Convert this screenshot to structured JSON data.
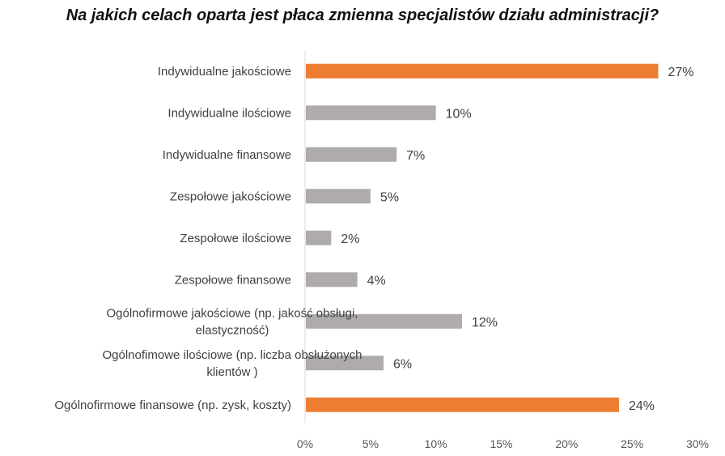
{
  "chart_data": {
    "type": "bar",
    "orientation": "horizontal",
    "title": "Na jakich celach oparta jest płaca zmienna specjalistów działu administracji?",
    "categories": [
      [
        "Indywidualne jakościowe"
      ],
      [
        "Indywidualne ilościowe"
      ],
      [
        "Indywidualne finansowe"
      ],
      [
        "Zespołowe jakościowe"
      ],
      [
        "Zespołowe ilościowe"
      ],
      [
        "Zespołowe finansowe"
      ],
      [
        "Ogólnofirmowe jakościowe (np. jakość obsługi,",
        "elastyczność)"
      ],
      [
        "Ogólnofimowe ilościowe (np. liczba obsłużonych",
        "klientów )"
      ],
      [
        "Ogólnofirmowe finansowe (np. zysk, koszty)"
      ]
    ],
    "values": [
      27,
      10,
      7,
      5,
      2,
      4,
      12,
      6,
      24
    ],
    "value_labels": [
      "27%",
      "10%",
      "7%",
      "5%",
      "2%",
      "4%",
      "12%",
      "6%",
      "24%"
    ],
    "highlight": [
      true,
      false,
      false,
      false,
      false,
      false,
      false,
      false,
      true
    ],
    "xlim": [
      0,
      30
    ],
    "xticks": [
      0,
      5,
      10,
      15,
      20,
      25,
      30
    ],
    "xtick_labels": [
      "0%",
      "5%",
      "10%",
      "15%",
      "20%",
      "25%",
      "30%"
    ],
    "xlabel": "",
    "ylabel": "",
    "grid": false,
    "colors": {
      "highlight": "#ED7D31",
      "default": "#AFABAB",
      "axis": "#D9D9D9"
    }
  }
}
